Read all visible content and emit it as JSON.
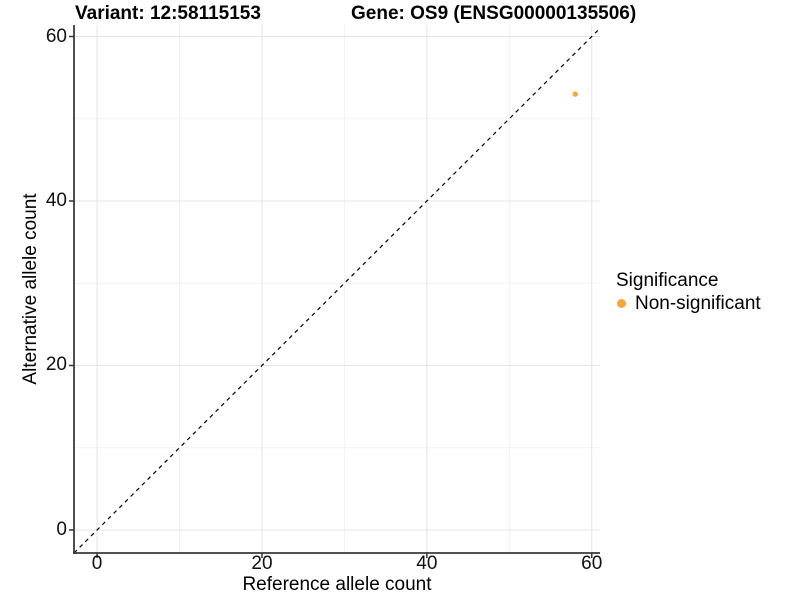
{
  "chart_data": {
    "type": "scatter",
    "title_left": "Variant: 12:58115153",
    "title_right": "Gene: OS9 (ENSG00000135506)",
    "xlabel": "Reference allele count",
    "ylabel": "Alternative allele count",
    "xlim": [
      -2.8,
      61
    ],
    "ylim": [
      -2.8,
      61.4
    ],
    "xticks": [
      0,
      20,
      40,
      60
    ],
    "yticks": [
      0,
      20,
      40,
      60
    ],
    "minor_xticks": [
      10,
      30,
      50
    ],
    "minor_yticks": [
      10,
      30,
      50
    ],
    "grid": "major+minor",
    "identity_line": {
      "style": "dashed",
      "slope": 1,
      "intercept": 0,
      "color": "#000000"
    },
    "series": [
      {
        "name": "Non-significant",
        "color": "#FAA43A",
        "point_radius": 2.7,
        "points": [
          {
            "x": 58,
            "y": 53
          }
        ]
      }
    ],
    "legend": {
      "title": "Significance",
      "position": "right",
      "items": [
        {
          "label": "Non-significant",
          "color": "#FAA43A"
        }
      ]
    },
    "colors": {
      "background": "#FFFFFF",
      "major_grid": "#E4E4E4",
      "minor_grid": "#F2F2F2",
      "axis_line": "#3A3A3A",
      "tick_mark": "#333333",
      "text": "#000000"
    }
  }
}
